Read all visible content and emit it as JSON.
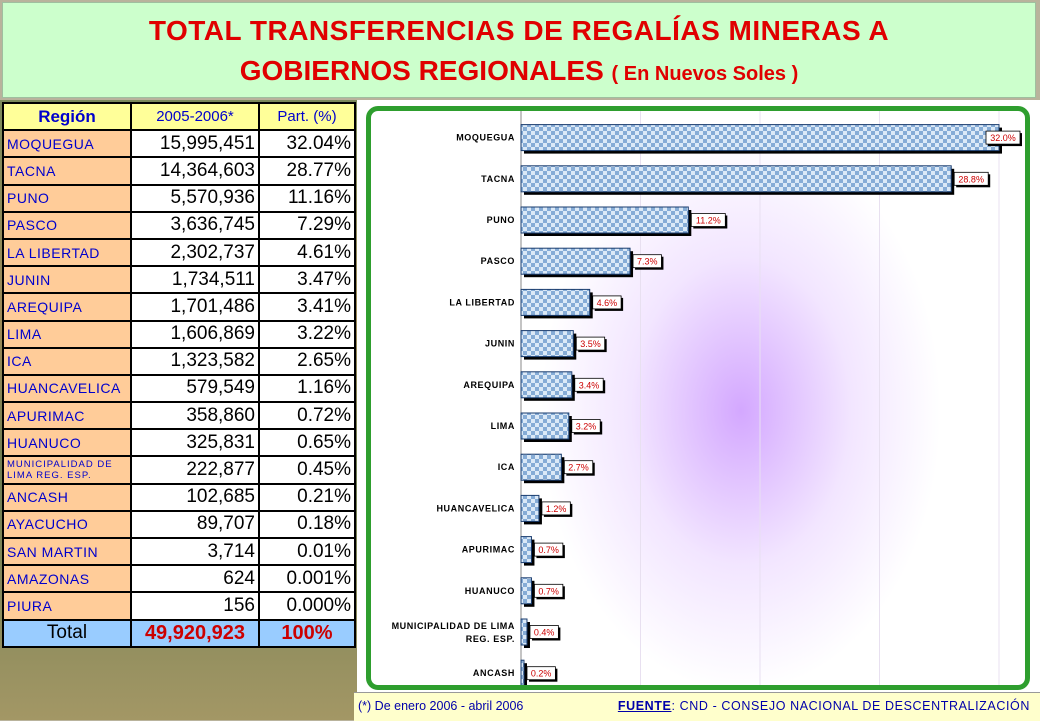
{
  "title": {
    "line1": "TOTAL TRANSFERENCIAS DE REGALÍAS MINERAS A",
    "line2": "GOBIERNOS REGIONALES",
    "unit": "( En Nuevos Soles )"
  },
  "table": {
    "headers": [
      "Región",
      "2005-2006*",
      "Part. (%)"
    ],
    "rows": [
      {
        "region": "MOQUEGUA",
        "amount": "15,995,451",
        "pct": "32.04%"
      },
      {
        "region": "TACNA",
        "amount": "14,364,603",
        "pct": "28.77%"
      },
      {
        "region": "PUNO",
        "amount": "5,570,936",
        "pct": "11.16%"
      },
      {
        "region": "PASCO",
        "amount": "3,636,745",
        "pct": "7.29%"
      },
      {
        "region": "LA LIBERTAD",
        "amount": "2,302,737",
        "pct": "4.61%"
      },
      {
        "region": "JUNIN",
        "amount": "1,734,511",
        "pct": "3.47%"
      },
      {
        "region": "AREQUIPA",
        "amount": "1,701,486",
        "pct": "3.41%"
      },
      {
        "region": "LIMA",
        "amount": "1,606,869",
        "pct": "3.22%"
      },
      {
        "region": "ICA",
        "amount": "1,323,582",
        "pct": "2.65%"
      },
      {
        "region": "HUANCAVELICA",
        "amount": "579,549",
        "pct": "1.16%"
      },
      {
        "region": "APURIMAC",
        "amount": "358,860",
        "pct": "0.72%"
      },
      {
        "region": "HUANUCO",
        "amount": "325,831",
        "pct": "0.65%"
      },
      {
        "region": "MUNICIPALIDAD DE LIMA REG. ESP.",
        "amount": "222,877",
        "pct": "0.45%"
      },
      {
        "region": "ANCASH",
        "amount": "102,685",
        "pct": "0.21%"
      },
      {
        "region": "AYACUCHO",
        "amount": "89,707",
        "pct": "0.18%"
      },
      {
        "region": "SAN MARTIN",
        "amount": "3,714",
        "pct": "0.01%"
      },
      {
        "region": "AMAZONAS",
        "amount": "624",
        "pct": "0.001%"
      },
      {
        "region": "PIURA",
        "amount": "156",
        "pct": "0.000%"
      }
    ],
    "total": {
      "label": "Total",
      "amount": "49,920,923",
      "pct": "100%"
    }
  },
  "chart_data": {
    "type": "bar",
    "orientation": "horizontal",
    "categories": [
      "MOQUEGUA",
      "TACNA",
      "PUNO",
      "PASCO",
      "LA LIBERTAD",
      "JUNIN",
      "AREQUIPA",
      "LIMA",
      "ICA",
      "HUANCAVELICA",
      "APURIMAC",
      "HUANUCO",
      "MUNICIPALIDAD DE LIMA REG. ESP.",
      "ANCASH"
    ],
    "values": [
      32.0,
      28.8,
      11.2,
      7.3,
      4.6,
      3.5,
      3.4,
      3.2,
      2.7,
      1.2,
      0.7,
      0.7,
      0.4,
      0.2
    ],
    "value_labels": [
      "32.0%",
      "28.8%",
      "11.2%",
      "7.3%",
      "4.6%",
      "3.5%",
      "3.4%",
      "3.2%",
      "2.7%",
      "1.2%",
      "0.7%",
      "0.7%",
      "0.4%",
      "0.2%"
    ],
    "xlim": [
      0,
      32
    ],
    "grid": true,
    "colors": {
      "bar_fill": "#cfe2f3",
      "bar_check": "#7fa8d9",
      "label_text": "#cc0000",
      "frame": "#2e9e2e"
    }
  },
  "footer": {
    "note": "(*) De enero 2006 - abril 2006",
    "source_label": "FUENTE",
    "source_text": ": CND - CONSEJO NACIONAL DE DESCENTRALIZACIÓN"
  }
}
